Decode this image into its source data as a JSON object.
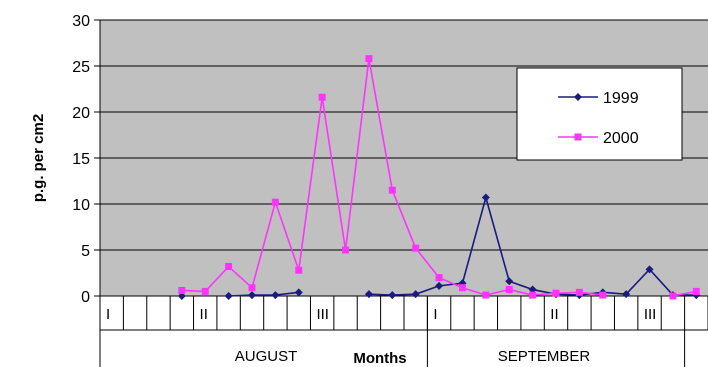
{
  "chart_data": {
    "type": "line",
    "title": "",
    "xlabel": "Months",
    "ylabel": "p.g. per cm2",
    "ylim": [
      0,
      30
    ],
    "yticks": [
      0,
      5,
      10,
      15,
      20,
      25,
      30
    ],
    "grid": "horizontal",
    "legend_position": "top-right",
    "months": [
      {
        "label": "AUGUST",
        "decades": [
          "I",
          "II",
          "III"
        ]
      },
      {
        "label": "SEPTEMBER",
        "decades": [
          "I",
          "II",
          "III"
        ]
      }
    ],
    "series": [
      {
        "name": "1999",
        "color": "#1a1a80",
        "marker": "diamond",
        "values": [
          null,
          null,
          null,
          0.0,
          null,
          0.0,
          0.1,
          0.1,
          0.4,
          null,
          null,
          0.2,
          0.1,
          0.2,
          1.1,
          1.4,
          10.7,
          1.6,
          0.7,
          0.2,
          0.1,
          0.4,
          0.2,
          2.9,
          0.1,
          0.1
        ]
      },
      {
        "name": "2000",
        "color": "#ff33ff",
        "marker": "square",
        "values": [
          null,
          null,
          null,
          0.6,
          0.5,
          3.2,
          0.9,
          10.2,
          2.8,
          21.6,
          5.0,
          25.8,
          11.5,
          5.2,
          2.0,
          0.9,
          0.1,
          0.7,
          0.1,
          0.3,
          0.4,
          0.1,
          null,
          null,
          0.0,
          0.5
        ]
      }
    ]
  }
}
